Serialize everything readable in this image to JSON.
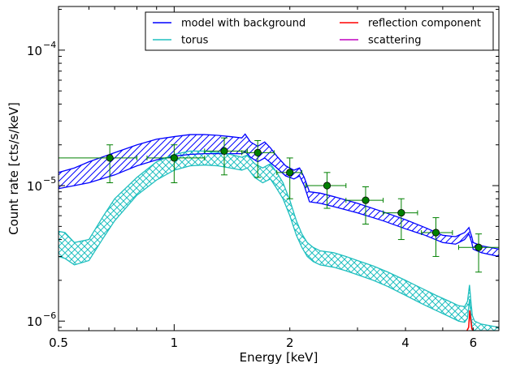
{
  "chart_data": {
    "type": "line",
    "xlabel": "Energy [keV]",
    "ylabel": "Count rate [cts/s/keV]",
    "x_scale": "log",
    "y_scale": "log",
    "xlim": [
      0.5,
      7.0
    ],
    "ylim": [
      8.5e-07,
      0.00021
    ],
    "x_ticks": [
      {
        "value": 0.5,
        "label": "0.5"
      },
      {
        "value": 1,
        "label": "1"
      },
      {
        "value": 2,
        "label": "2"
      },
      {
        "value": 4,
        "label": "4"
      },
      {
        "value": 6,
        "label": "6"
      }
    ],
    "y_ticks": [
      {
        "value": 1e-06,
        "mant": "10",
        "exp": "−6"
      },
      {
        "value": 1e-05,
        "mant": "10",
        "exp": "−5"
      },
      {
        "value": 0.0001,
        "mant": "10",
        "exp": "−4"
      }
    ],
    "grid": false,
    "legend_position": "top-right",
    "legend": [
      {
        "name": "model with background",
        "color": "#0000ff"
      },
      {
        "name": "reflection component",
        "color": "#ff0000"
      },
      {
        "name": "torus",
        "color": "#1fbfbf"
      },
      {
        "name": "scattering",
        "color": "#bf00bf"
      }
    ],
    "series": [
      {
        "name": "model with background",
        "color": "#0000ff",
        "band": true,
        "x": [
          0.5,
          0.55,
          0.6,
          0.7,
          0.8,
          0.9,
          1.0,
          1.1,
          1.2,
          1.3,
          1.4,
          1.5,
          1.53,
          1.58,
          1.65,
          1.72,
          1.78,
          1.85,
          1.95,
          2.05,
          2.12,
          2.18,
          2.25,
          2.4,
          2.6,
          3.0,
          3.5,
          4.0,
          4.5,
          5.0,
          5.4,
          5.7,
          5.85,
          5.95,
          6.0,
          6.3,
          7.0
        ],
        "upper": [
          1.25e-05,
          1.35e-05,
          1.5e-05,
          1.75e-05,
          2e-05,
          2.2e-05,
          2.3e-05,
          2.38e-05,
          2.38e-05,
          2.35e-05,
          2.3e-05,
          2.25e-05,
          2.4e-05,
          2.1e-05,
          1.95e-05,
          2.1e-05,
          1.9e-05,
          1.65e-05,
          1.4e-05,
          1.3e-05,
          1.35e-05,
          1.15e-05,
          9e-06,
          8.8e-06,
          8.3e-06,
          7.4e-06,
          6.4e-06,
          5.6e-06,
          4.9e-06,
          4.3e-06,
          4.2e-06,
          4.5e-06,
          4.9e-06,
          4.2e-06,
          3.8e-06,
          3.6e-06,
          3.4e-06
        ],
        "lower": [
          9.5e-06,
          1e-05,
          1.05e-05,
          1.2e-05,
          1.4e-05,
          1.55e-05,
          1.65e-05,
          1.7e-05,
          1.72e-05,
          1.72e-05,
          1.72e-05,
          1.72e-05,
          1.78e-05,
          1.62e-05,
          1.5e-05,
          1.6e-05,
          1.48e-05,
          1.35e-05,
          1.18e-05,
          1.12e-05,
          1.18e-05,
          1e-05,
          7.6e-06,
          7.4e-06,
          7e-06,
          6.3e-06,
          5.5e-06,
          4.8e-06,
          4.3e-06,
          3.8e-06,
          3.7e-06,
          4e-06,
          4.4e-06,
          3.8e-06,
          3.4e-06,
          3.2e-06,
          3e-06
        ]
      },
      {
        "name": "torus",
        "color": "#1fbfbf",
        "band": true,
        "x": [
          0.5,
          0.52,
          0.55,
          0.6,
          0.65,
          0.7,
          0.8,
          0.9,
          1.0,
          1.1,
          1.2,
          1.3,
          1.4,
          1.5,
          1.55,
          1.62,
          1.7,
          1.78,
          1.85,
          1.92,
          2.0,
          2.08,
          2.15,
          2.22,
          2.3,
          2.4,
          2.6,
          2.8,
          3.0,
          3.3,
          3.6,
          4.0,
          4.4,
          4.8,
          5.2,
          5.5,
          5.7,
          5.8,
          5.87,
          5.92,
          5.97,
          6.05,
          6.3,
          7.0
        ],
        "upper": [
          4.6e-06,
          4.5e-06,
          3.8e-06,
          4e-06,
          5.8e-06,
          8e-06,
          1.15e-05,
          1.5e-05,
          1.7e-05,
          1.8e-05,
          1.8e-05,
          1.75e-05,
          1.7e-05,
          1.62e-05,
          1.68e-05,
          1.45e-05,
          1.35e-05,
          1.45e-05,
          1.25e-05,
          1.05e-05,
          7.8e-06,
          5.5e-06,
          4.4e-06,
          3.8e-06,
          3.5e-06,
          3.3e-06,
          3.2e-06,
          3e-06,
          2.8e-06,
          2.55e-06,
          2.3e-06,
          2e-06,
          1.75e-06,
          1.55e-06,
          1.4e-06,
          1.3e-06,
          1.28e-06,
          1.4e-06,
          1.85e-06,
          1.4e-06,
          1.1e-06,
          1e-06,
          9.5e-07,
          9e-07
        ],
        "lower": [
          3e-06,
          2.9e-06,
          2.6e-06,
          2.8e-06,
          4e-06,
          5.5e-06,
          8.5e-06,
          1.1e-05,
          1.3e-05,
          1.4e-05,
          1.42e-05,
          1.4e-05,
          1.35e-05,
          1.3e-05,
          1.35e-05,
          1.15e-05,
          1.05e-05,
          1.12e-05,
          9.5e-06,
          8e-06,
          6e-06,
          4.3e-06,
          3.5e-06,
          3e-06,
          2.75e-06,
          2.6e-06,
          2.5e-06,
          2.35e-06,
          2.2e-06,
          2e-06,
          1.8e-06,
          1.55e-06,
          1.35e-06,
          1.2e-06,
          1.08e-06,
          1e-06,
          9.8e-07,
          1.05e-06,
          1.45e-06,
          1.1e-06,
          8.5e-07,
          8.5e-07,
          8.5e-07,
          8.5e-07
        ]
      },
      {
        "name": "reflection component",
        "color": "#ff0000",
        "band": false,
        "x": [
          5.78,
          5.84,
          5.88,
          5.91,
          5.95,
          6.0
        ],
        "y": [
          8.5e-07,
          9e-07,
          1.2e-06,
          1.05e-06,
          8.8e-07,
          8.5e-07
        ]
      }
    ],
    "data_points": [
      {
        "x": 0.68,
        "y": 1.6e-05,
        "xerr": [
          0.5,
          0.8
        ],
        "yerr": [
          1.05e-05,
          2e-05
        ]
      },
      {
        "x": 1.0,
        "y": 1.6e-05,
        "xerr": [
          0.85,
          1.2
        ],
        "yerr": [
          1.05e-05,
          2e-05
        ]
      },
      {
        "x": 1.35,
        "y": 1.8e-05,
        "xerr": [
          1.2,
          1.55
        ],
        "yerr": [
          1.2e-05,
          2.25e-05
        ]
      },
      {
        "x": 1.65,
        "y": 1.75e-05,
        "xerr": [
          1.5,
          1.82
        ],
        "yerr": [
          1.15e-05,
          2.15e-05
        ]
      },
      {
        "x": 2.0,
        "y": 1.25e-05,
        "xerr": [
          1.85,
          2.15
        ],
        "yerr": [
          8e-06,
          1.6e-05
        ]
      },
      {
        "x": 2.5,
        "y": 1e-05,
        "xerr": [
          2.2,
          2.8
        ],
        "yerr": [
          6.8e-06,
          1.25e-05
        ]
      },
      {
        "x": 3.15,
        "y": 7.8e-06,
        "xerr": [
          2.8,
          3.5
        ],
        "yerr": [
          5.2e-06,
          9.8e-06
        ]
      },
      {
        "x": 3.9,
        "y": 6.3e-06,
        "xerr": [
          3.5,
          4.3
        ],
        "yerr": [
          4e-06,
          8e-06
        ]
      },
      {
        "x": 4.8,
        "y": 4.5e-06,
        "xerr": [
          4.4,
          5.3
        ],
        "yerr": [
          3e-06,
          5.8e-06
        ]
      },
      {
        "x": 6.2,
        "y": 3.5e-06,
        "xerr": [
          5.5,
          7.0
        ],
        "yerr": [
          2.3e-06,
          4.4e-06
        ]
      }
    ],
    "data_color": "#008000",
    "data_marker_fill": "#008000"
  }
}
